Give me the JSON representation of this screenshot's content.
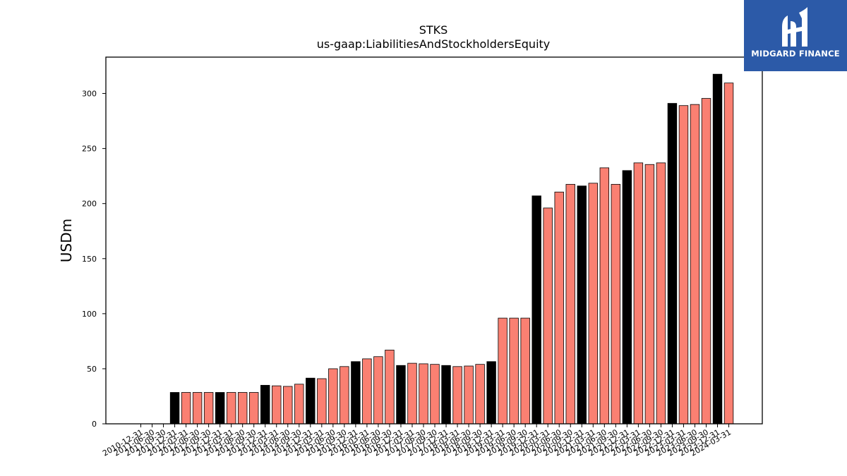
{
  "brand": {
    "name": "MIDGARD FINANCE",
    "bg_color": "#2c5aa8",
    "icon": "midgard-logo-icon"
  },
  "chart_data": {
    "type": "bar",
    "title": "STKS",
    "subtitle": "us-gaap:LiabilitiesAndStockholdersEquity",
    "xlabel": "",
    "ylabel": "USDm",
    "ylim": [
      0,
      333
    ],
    "yticks": [
      0,
      50,
      100,
      150,
      200,
      250,
      300
    ],
    "colors": {
      "annual": "#000000",
      "quarterly": "#fa8072",
      "edge": "#000000"
    },
    "categories": [
      "2010-12-31",
      "2011-06-30",
      "2011-09-30",
      "2011-12-31",
      "2012-03-31",
      "2012-06-30",
      "2012-09-30",
      "2012-12-31",
      "2013-03-31",
      "2013-06-30",
      "2013-09-30",
      "2013-12-31",
      "2014-03-31",
      "2014-06-30",
      "2014-09-30",
      "2014-12-31",
      "2015-03-31",
      "2015-06-30",
      "2015-09-30",
      "2015-12-31",
      "2016-03-31",
      "2016-06-30",
      "2016-09-30",
      "2016-12-31",
      "2017-03-31",
      "2017-06-30",
      "2017-09-30",
      "2017-12-31",
      "2018-03-31",
      "2018-06-30",
      "2018-09-30",
      "2018-12-31",
      "2019-03-31",
      "2019-06-30",
      "2019-09-30",
      "2019-12-31",
      "2020-03-31",
      "2020-06-30",
      "2020-09-30",
      "2020-12-31",
      "2021-03-31",
      "2021-06-30",
      "2021-09-30",
      "2021-12-31",
      "2022-03-31",
      "2022-06-30",
      "2022-09-30",
      "2022-12-31",
      "2023-03-31",
      "2023-06-30",
      "2023-09-30",
      "2023-12-31",
      "2024-03-31"
    ],
    "values": [
      0,
      0,
      0,
      28.5,
      28.5,
      28.5,
      28.5,
      28.5,
      28.5,
      28.5,
      28.5,
      35,
      34.5,
      34,
      36,
      41.5,
      41,
      50,
      52,
      56.5,
      59,
      61,
      67,
      53,
      55,
      54.5,
      54,
      53,
      52,
      52.5,
      54,
      56.5,
      96,
      96,
      96,
      207,
      196,
      210.5,
      217.5,
      216,
      218.5,
      232.5,
      217.5,
      230,
      237,
      235.5,
      237,
      291,
      289,
      290,
      295.5,
      317.5,
      309.5
    ],
    "kinds": [
      "A",
      "Q",
      "Q",
      "A",
      "Q",
      "Q",
      "Q",
      "A",
      "Q",
      "Q",
      "Q",
      "A",
      "Q",
      "Q",
      "Q",
      "A",
      "Q",
      "Q",
      "Q",
      "A",
      "Q",
      "Q",
      "Q",
      "A",
      "Q",
      "Q",
      "Q",
      "A",
      "Q",
      "Q",
      "Q",
      "A",
      "Q",
      "Q",
      "Q",
      "A",
      "Q",
      "Q",
      "Q",
      "A",
      "Q",
      "Q",
      "Q",
      "A",
      "Q",
      "Q",
      "Q",
      "A",
      "Q",
      "Q",
      "Q",
      "A",
      "Q"
    ]
  }
}
